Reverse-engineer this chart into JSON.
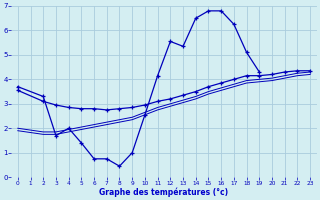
{
  "bg_color": "#d4eef2",
  "line_color": "#0000bb",
  "grid_color": "#aaccdd",
  "xlabel": "Graphe des températures (°c)",
  "xlabel_color": "#0000cc",
  "tick_color": "#0000bb",
  "xlim": [
    -0.5,
    23.5
  ],
  "ylim": [
    0,
    7
  ],
  "xticks": [
    0,
    1,
    2,
    3,
    4,
    5,
    6,
    7,
    8,
    9,
    10,
    11,
    12,
    13,
    14,
    15,
    16,
    17,
    18,
    19,
    20,
    21,
    22,
    23
  ],
  "yticks": [
    0,
    1,
    2,
    3,
    4,
    5,
    6,
    7
  ],
  "curve1_x": [
    0,
    2,
    3,
    4,
    5,
    6,
    7,
    8,
    9,
    10,
    11,
    12,
    13,
    14,
    15,
    16,
    17,
    18,
    19
  ],
  "curve1_y": [
    3.7,
    3.3,
    1.7,
    2.0,
    1.4,
    0.75,
    0.75,
    0.45,
    1.0,
    2.55,
    4.15,
    5.55,
    5.35,
    6.5,
    6.8,
    6.8,
    6.25,
    5.1,
    4.3
  ],
  "curve2_x": [
    0,
    2,
    3,
    4,
    5,
    6,
    7,
    8,
    9,
    10,
    11,
    12,
    13,
    14,
    15,
    16,
    17,
    18,
    19,
    20,
    21,
    22,
    23
  ],
  "curve2_y": [
    3.55,
    3.1,
    2.95,
    2.85,
    2.8,
    2.8,
    2.75,
    2.8,
    2.85,
    2.95,
    3.1,
    3.2,
    3.35,
    3.5,
    3.7,
    3.85,
    4.0,
    4.15,
    4.15,
    4.2,
    4.3,
    4.35,
    4.35
  ],
  "curve3_x": [
    0,
    2,
    3,
    4,
    5,
    6,
    7,
    8,
    9,
    10,
    11,
    12,
    13,
    14,
    15,
    16,
    17,
    18,
    19,
    20,
    21,
    22,
    23
  ],
  "curve3_y": [
    2.0,
    1.85,
    1.85,
    1.95,
    2.05,
    2.15,
    2.25,
    2.35,
    2.45,
    2.65,
    2.85,
    3.0,
    3.15,
    3.3,
    3.5,
    3.65,
    3.8,
    3.95,
    4.0,
    4.05,
    4.15,
    4.25,
    4.3
  ],
  "curve4_x": [
    0,
    2,
    3,
    4,
    5,
    6,
    7,
    8,
    9,
    10,
    11,
    12,
    13,
    14,
    15,
    16,
    17,
    18,
    19,
    20,
    21,
    22,
    23
  ],
  "curve4_y": [
    1.9,
    1.75,
    1.75,
    1.85,
    1.95,
    2.05,
    2.15,
    2.25,
    2.35,
    2.55,
    2.75,
    2.9,
    3.05,
    3.2,
    3.4,
    3.55,
    3.7,
    3.85,
    3.9,
    3.95,
    4.05,
    4.15,
    4.2
  ]
}
